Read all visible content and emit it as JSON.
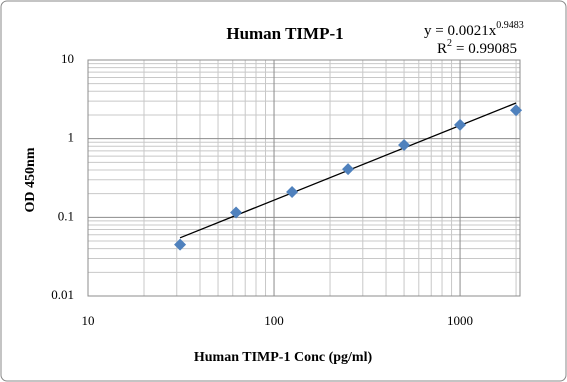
{
  "chart_data": {
    "type": "scatter",
    "title": "Human TIMP-1",
    "x_label": "Human TIMP-1 Conc (pg/ml)",
    "y_label": "OD 450nm",
    "x": [
      31.25,
      62.5,
      125,
      250,
      500,
      1000,
      2000
    ],
    "series": [
      {
        "color": "#4f81bd",
        "values": [
          0.045,
          0.115,
          0.21,
          0.41,
          0.83,
          1.5,
          2.3
        ]
      }
    ],
    "trendline": {
      "color": "#000000",
      "x": [
        31.25,
        2000
      ],
      "values": [
        0.0549,
        2.84
      ]
    },
    "equation": "y = 0.0021x",
    "equation_exponent": "0.9483",
    "r_squared_label": "R",
    "r_squared_power": "2",
    "r_squared_value": "= 0.99085",
    "xlim": [
      10,
      2100
    ],
    "ylim": [
      0.01,
      10
    ],
    "xticks": [
      10,
      100,
      1000
    ],
    "yticks": [
      0.01,
      0.1,
      1,
      10
    ],
    "x_log": true,
    "y_log": true,
    "grid": true,
    "minor_grid": true
  }
}
